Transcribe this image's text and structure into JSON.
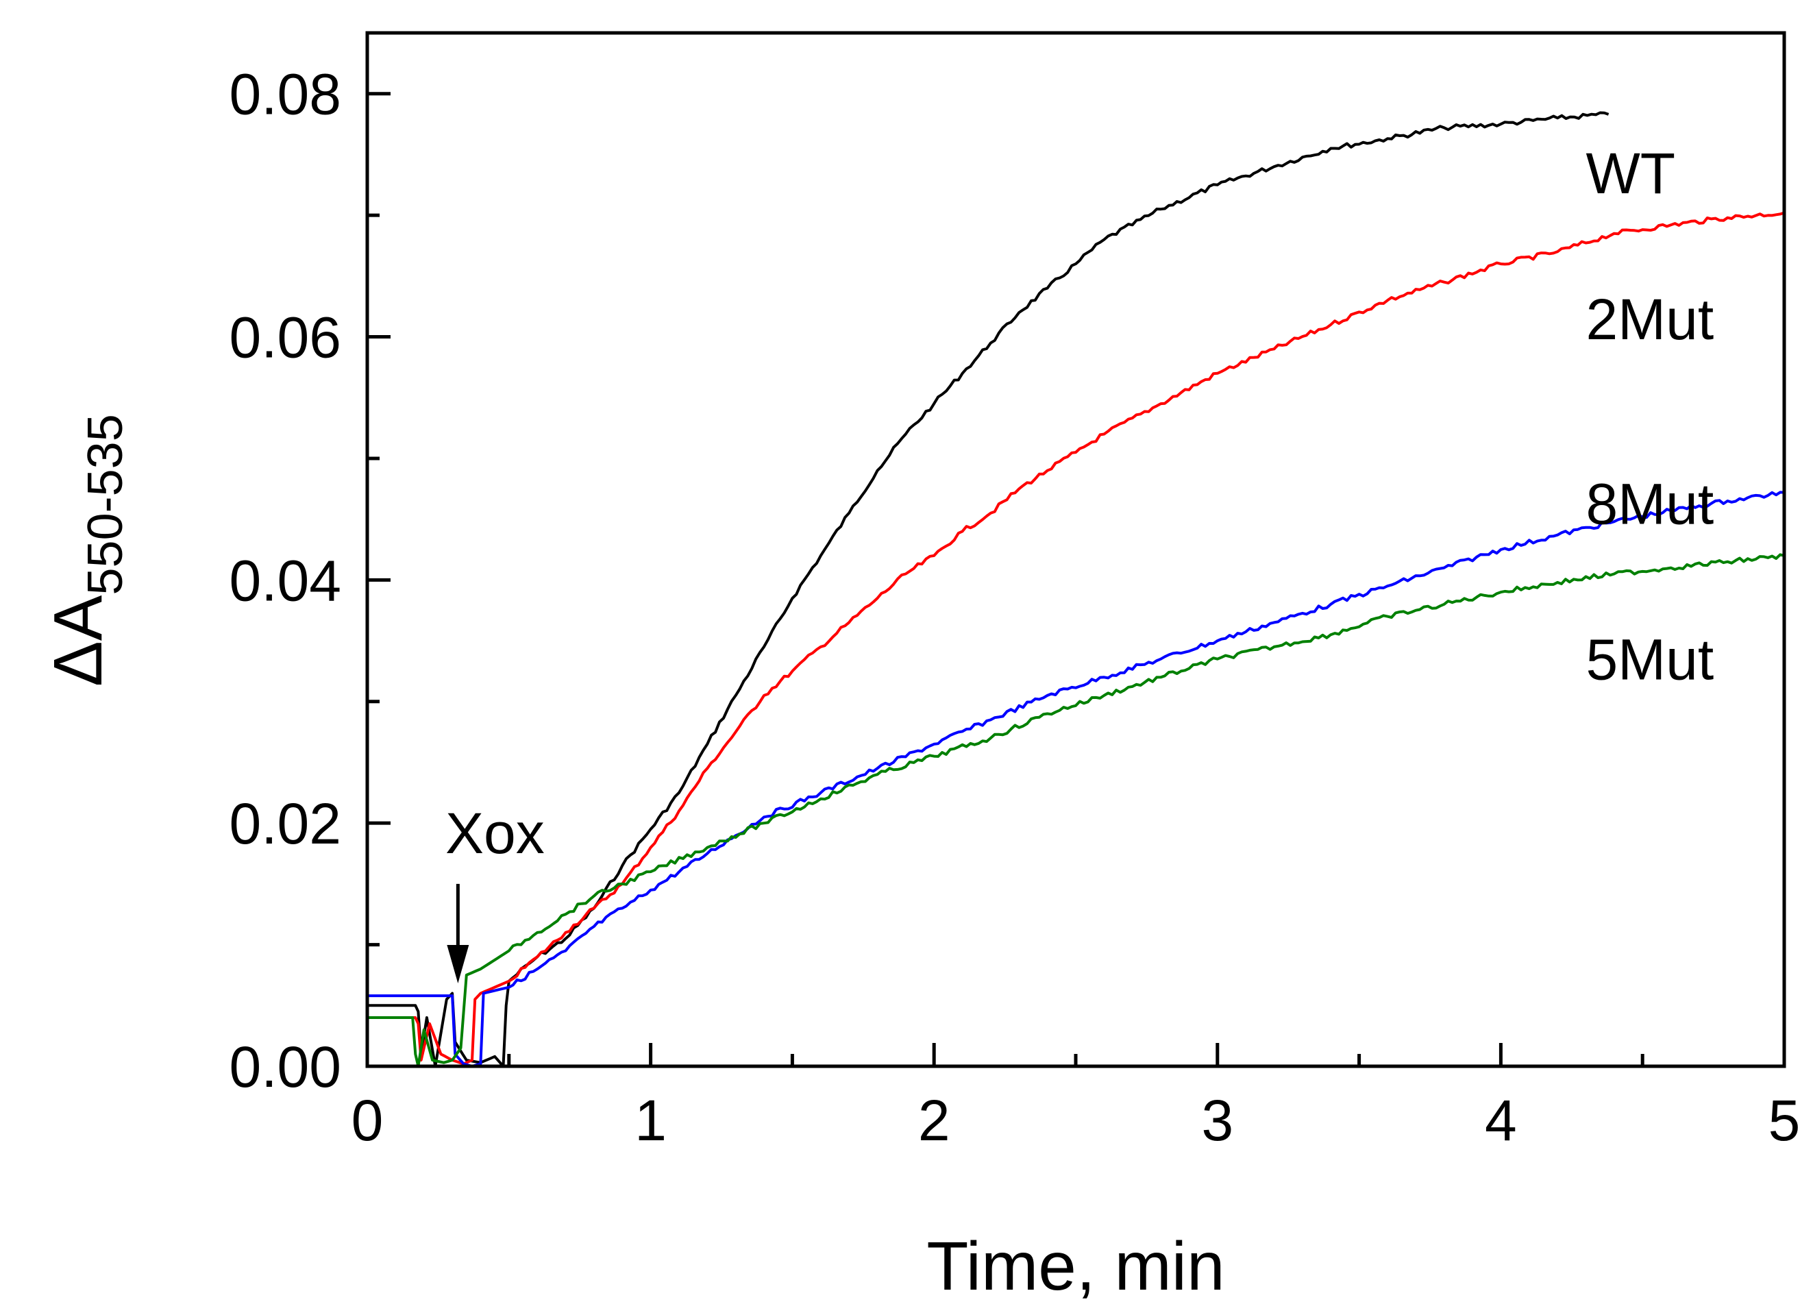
{
  "chart_data": {
    "type": "line",
    "title": "",
    "xlabel": "Time, min",
    "ylabel_main": "ΔA",
    "ylabel_sub": "550-535",
    "xlim": [
      0,
      5
    ],
    "ylim": [
      0,
      0.085
    ],
    "xticks": [
      0,
      1,
      2,
      3,
      4,
      5
    ],
    "xtick_labels": [
      "0",
      "1",
      "2",
      "3",
      "4",
      "5"
    ],
    "yticks": [
      0,
      0.02,
      0.04,
      0.06,
      0.08
    ],
    "ytick_labels": [
      "0.00",
      "0.02",
      "0.04",
      "0.06",
      "0.08"
    ],
    "x_minor_ticks": [
      0.5,
      1.5,
      2.5,
      3.5,
      4.5
    ],
    "y_minor_ticks": [
      0.01,
      0.03,
      0.05,
      0.07
    ],
    "grid": false,
    "annotation": {
      "text": "Xox",
      "x": 0.32,
      "arrow_from_y": 0.015,
      "arrow_to_y": 0.0075
    },
    "series": [
      {
        "name": "WT",
        "label": "WT",
        "color": "#000000",
        "label_anchor": [
          4.3,
          0.0735
        ],
        "points": [
          [
            0,
            0.005
          ],
          [
            0.17,
            0.005
          ],
          [
            0.18,
            0.0045
          ],
          [
            0.19,
            0.001
          ],
          [
            0.21,
            0.004
          ],
          [
            0.24,
            0.0
          ],
          [
            0.28,
            0.0055
          ],
          [
            0.3,
            0.006
          ],
          [
            0.31,
            0.002
          ],
          [
            0.35,
            0.0005
          ],
          [
            0.4,
            0.0003
          ],
          [
            0.45,
            0.0008
          ],
          [
            0.48,
            0.0
          ],
          [
            0.49,
            0.005
          ],
          [
            0.5,
            0.007
          ],
          [
            0.6,
            0.009
          ],
          [
            0.7,
            0.0105
          ],
          [
            0.8,
            0.013
          ],
          [
            0.9,
            0.0165
          ],
          [
            1.0,
            0.0195
          ],
          [
            1.1,
            0.0225
          ],
          [
            1.2,
            0.0265
          ],
          [
            1.3,
            0.0305
          ],
          [
            1.4,
            0.0345
          ],
          [
            1.5,
            0.0385
          ],
          [
            1.6,
            0.042
          ],
          [
            1.7,
            0.0455
          ],
          [
            1.8,
            0.049
          ],
          [
            1.9,
            0.052
          ],
          [
            2.0,
            0.0545
          ],
          [
            2.1,
            0.057
          ],
          [
            2.2,
            0.0595
          ],
          [
            2.3,
            0.062
          ],
          [
            2.4,
            0.064
          ],
          [
            2.5,
            0.066
          ],
          [
            2.6,
            0.068
          ],
          [
            2.8,
            0.0705
          ],
          [
            3.0,
            0.0725
          ],
          [
            3.2,
            0.074
          ],
          [
            3.4,
            0.0755
          ],
          [
            3.6,
            0.0763
          ],
          [
            3.8,
            0.0772
          ],
          [
            4.0,
            0.0775
          ],
          [
            4.2,
            0.078
          ],
          [
            4.38,
            0.0783
          ]
        ]
      },
      {
        "name": "2Mut",
        "label": "2Mut",
        "color": "#ff0000",
        "label_anchor": [
          4.3,
          0.0615
        ],
        "points": [
          [
            0,
            0.004
          ],
          [
            0.17,
            0.004
          ],
          [
            0.18,
            0.0035
          ],
          [
            0.19,
            0.0005
          ],
          [
            0.22,
            0.0035
          ],
          [
            0.26,
            0.001
          ],
          [
            0.3,
            0.0005
          ],
          [
            0.34,
            0.0002
          ],
          [
            0.37,
            0.0005
          ],
          [
            0.38,
            0.0055
          ],
          [
            0.4,
            0.006
          ],
          [
            0.5,
            0.007
          ],
          [
            0.6,
            0.009
          ],
          [
            0.7,
            0.011
          ],
          [
            0.8,
            0.013
          ],
          [
            0.9,
            0.015
          ],
          [
            1.0,
            0.018
          ],
          [
            1.1,
            0.021
          ],
          [
            1.2,
            0.0245
          ],
          [
            1.3,
            0.0275
          ],
          [
            1.4,
            0.0305
          ],
          [
            1.5,
            0.0325
          ],
          [
            1.6,
            0.0345
          ],
          [
            1.7,
            0.0365
          ],
          [
            1.8,
            0.0385
          ],
          [
            1.9,
            0.0405
          ],
          [
            2.0,
            0.042
          ],
          [
            2.1,
            0.044
          ],
          [
            2.2,
            0.0455
          ],
          [
            2.3,
            0.0475
          ],
          [
            2.4,
            0.049
          ],
          [
            2.5,
            0.0505
          ],
          [
            2.6,
            0.052
          ],
          [
            2.8,
            0.0545
          ],
          [
            3.0,
            0.057
          ],
          [
            3.2,
            0.059
          ],
          [
            3.4,
            0.061
          ],
          [
            3.6,
            0.063
          ],
          [
            3.8,
            0.0645
          ],
          [
            4.0,
            0.066
          ],
          [
            4.2,
            0.067
          ],
          [
            4.4,
            0.0685
          ],
          [
            4.6,
            0.0692
          ],
          [
            4.8,
            0.0698
          ],
          [
            5.0,
            0.0702
          ]
        ]
      },
      {
        "name": "8Mut",
        "label": "8Mut",
        "color": "#0000ff",
        "label_anchor": [
          4.3,
          0.0463
        ],
        "points": [
          [
            0,
            0.0058
          ],
          [
            0.3,
            0.0058
          ],
          [
            0.31,
            0.001
          ],
          [
            0.34,
            0.0002
          ],
          [
            0.37,
            0.0
          ],
          [
            0.4,
            0.0002
          ],
          [
            0.41,
            0.006
          ],
          [
            0.5,
            0.0065
          ],
          [
            0.6,
            0.008
          ],
          [
            0.7,
            0.0095
          ],
          [
            0.8,
            0.0115
          ],
          [
            0.9,
            0.013
          ],
          [
            1.0,
            0.0145
          ],
          [
            1.2,
            0.0175
          ],
          [
            1.4,
            0.0205
          ],
          [
            1.6,
            0.0225
          ],
          [
            1.8,
            0.0245
          ],
          [
            2.0,
            0.0265
          ],
          [
            2.2,
            0.0285
          ],
          [
            2.4,
            0.0305
          ],
          [
            2.6,
            0.032
          ],
          [
            2.8,
            0.0335
          ],
          [
            3.0,
            0.035
          ],
          [
            3.2,
            0.0365
          ],
          [
            3.4,
            0.038
          ],
          [
            3.6,
            0.0395
          ],
          [
            3.8,
            0.041
          ],
          [
            4.0,
            0.0425
          ],
          [
            4.2,
            0.0437
          ],
          [
            4.4,
            0.0448
          ],
          [
            4.6,
            0.0457
          ],
          [
            4.8,
            0.0465
          ],
          [
            5.0,
            0.0472
          ]
        ]
      },
      {
        "name": "5Mut",
        "label": "5Mut",
        "color": "#008000",
        "label_anchor": [
          4.3,
          0.0335
        ],
        "points": [
          [
            0,
            0.004
          ],
          [
            0.16,
            0.004
          ],
          [
            0.17,
            0.001
          ],
          [
            0.18,
            0.0
          ],
          [
            0.2,
            0.003
          ],
          [
            0.23,
            0.0005
          ],
          [
            0.27,
            0.0003
          ],
          [
            0.3,
            0.0005
          ],
          [
            0.33,
            0.0015
          ],
          [
            0.35,
            0.0075
          ],
          [
            0.4,
            0.008
          ],
          [
            0.5,
            0.0095
          ],
          [
            0.6,
            0.011
          ],
          [
            0.7,
            0.0125
          ],
          [
            0.8,
            0.014
          ],
          [
            0.9,
            0.015
          ],
          [
            1.0,
            0.016
          ],
          [
            1.2,
            0.018
          ],
          [
            1.4,
            0.02
          ],
          [
            1.6,
            0.022
          ],
          [
            1.8,
            0.024
          ],
          [
            2.0,
            0.0255
          ],
          [
            2.2,
            0.027
          ],
          [
            2.4,
            0.029
          ],
          [
            2.6,
            0.0305
          ],
          [
            2.8,
            0.032
          ],
          [
            3.0,
            0.0335
          ],
          [
            3.2,
            0.0345
          ],
          [
            3.4,
            0.0355
          ],
          [
            3.6,
            0.037
          ],
          [
            3.8,
            0.038
          ],
          [
            4.0,
            0.039
          ],
          [
            4.2,
            0.0398
          ],
          [
            4.4,
            0.0405
          ],
          [
            4.6,
            0.041
          ],
          [
            4.8,
            0.0415
          ],
          [
            5.0,
            0.042
          ]
        ]
      }
    ]
  }
}
